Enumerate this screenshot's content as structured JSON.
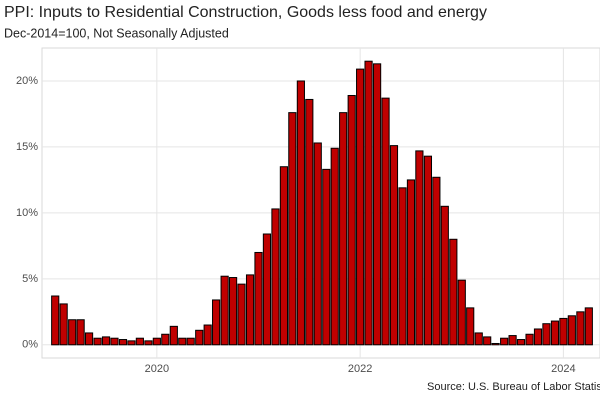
{
  "chart_data": {
    "type": "bar",
    "title": "PPI: Inputs to Residential Construction, Goods less food and energy",
    "subtitle": "Dec-2014=100, Not Seasonally Adjusted",
    "caption": "Source: U.S. Bureau of Labor Statistics",
    "x": [
      2019.0,
      2019.083,
      2019.167,
      2019.25,
      2019.333,
      2019.417,
      2019.5,
      2019.583,
      2019.667,
      2019.75,
      2019.833,
      2019.917,
      2020.0,
      2020.083,
      2020.167,
      2020.25,
      2020.333,
      2020.417,
      2020.5,
      2020.583,
      2020.667,
      2020.75,
      2020.833,
      2020.917,
      2021.0,
      2021.083,
      2021.167,
      2021.25,
      2021.333,
      2021.417,
      2021.5,
      2021.583,
      2021.667,
      2021.75,
      2021.833,
      2021.917,
      2022.0,
      2022.083,
      2022.167,
      2022.25,
      2022.333,
      2022.417,
      2022.5,
      2022.583,
      2022.667,
      2022.75,
      2022.833,
      2022.917,
      2023.0,
      2023.083,
      2023.167,
      2023.25,
      2023.333,
      2023.417,
      2023.5,
      2023.583,
      2023.667,
      2023.75,
      2023.833,
      2023.917,
      2024.0,
      2024.083,
      2024.167,
      2024.25
    ],
    "values": [
      3.7,
      3.1,
      1.9,
      1.9,
      0.9,
      0.5,
      0.6,
      0.5,
      0.4,
      0.3,
      0.5,
      0.3,
      0.5,
      0.8,
      1.4,
      0.5,
      0.5,
      1.1,
      1.5,
      3.4,
      5.2,
      5.1,
      4.6,
      5.3,
      7.0,
      8.4,
      10.3,
      13.5,
      17.6,
      20.0,
      18.6,
      15.3,
      13.3,
      14.9,
      17.6,
      18.9,
      20.9,
      21.5,
      21.3,
      18.7,
      15.1,
      11.9,
      12.5,
      14.7,
      14.3,
      12.7,
      10.5,
      8.0,
      4.9,
      2.8,
      0.9,
      0.6,
      0.1,
      0.5,
      0.7,
      0.4,
      0.8,
      1.2,
      1.6,
      1.8,
      2.0,
      2.2,
      2.5,
      2.8
    ],
    "color": "#c00000",
    "edgecolor": "#000000",
    "xlim": [
      2018.87,
      2024.36
    ],
    "xticks": [
      2020,
      2022,
      2024
    ],
    "ylim": [
      -1,
      22.5
    ],
    "yticks": [
      {
        "value": 0,
        "label": "0%"
      },
      {
        "value": 5,
        "label": "5%"
      },
      {
        "value": 10,
        "label": "10%"
      },
      {
        "value": 15,
        "label": "15%"
      },
      {
        "value": 20,
        "label": "20%"
      }
    ],
    "grid": true
  }
}
